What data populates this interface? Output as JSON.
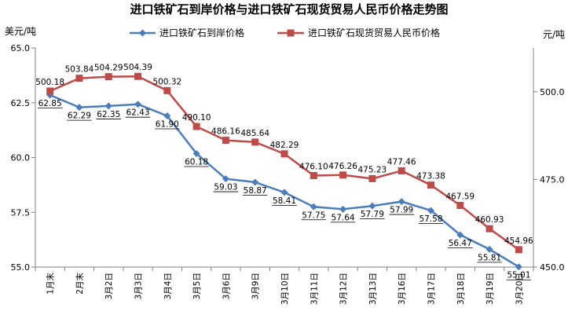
{
  "chart_data": {
    "type": "line",
    "title": "进口铁矿石到岸价格与进口铁矿石现货贸易人民币价格走势图",
    "ylabel_left": "美元/吨",
    "ylabel_right": "元/吨",
    "categories": [
      "1月末",
      "2月末",
      "3月2日",
      "3月3日",
      "3月4日",
      "3月5日",
      "3月6日",
      "3月9日",
      "3月10日",
      "3月11日",
      "3月12日",
      "3月13日",
      "3月16日",
      "3月17日",
      "3月18日",
      "3月19日",
      "3月20日"
    ],
    "ylim_left": [
      55.0,
      65.0
    ],
    "yticks_left": [
      55.0,
      57.5,
      60.0,
      62.5,
      65.0
    ],
    "ytick_labels_left": [
      "55.0",
      "57.5",
      "60.0",
      "62.5",
      "65.0"
    ],
    "ylim_right": [
      450.0,
      512.5
    ],
    "yticks_right": [
      450.0,
      475.0,
      500.0
    ],
    "ytick_labels_right": [
      "450.0",
      "475.0",
      "500.0"
    ],
    "grid": false,
    "legend_position": "top",
    "series": [
      {
        "name": "进口铁矿石到岸价格",
        "axis": "left",
        "color": "#4A7EBB",
        "marker": "diamond",
        "values": [
          62.85,
          62.29,
          62.35,
          62.43,
          61.9,
          60.18,
          59.03,
          58.87,
          58.41,
          57.75,
          57.64,
          57.79,
          57.99,
          57.58,
          56.47,
          55.81,
          55.01
        ],
        "labels": [
          "62.85",
          "62.29",
          "62.35",
          "62.43",
          "61.90",
          "60.18",
          "59.03",
          "58.87",
          "58.41",
          "57.75",
          "57.64",
          "57.79",
          "57.99",
          "57.58",
          "56.47",
          "55.81",
          "55.01"
        ]
      },
      {
        "name": "进口铁矿石现货贸易人民币价格",
        "axis": "right",
        "color": "#BE4B48",
        "marker": "square",
        "values": [
          500.18,
          503.84,
          504.29,
          504.39,
          500.32,
          490.1,
          486.16,
          485.64,
          482.29,
          476.1,
          476.26,
          475.23,
          477.46,
          473.38,
          467.59,
          460.93,
          454.96
        ],
        "labels": [
          "500.18",
          "503.84",
          "504.29",
          "504.39",
          "500.32",
          "490.10",
          "486.16",
          "485.64",
          "482.29",
          "476.10",
          "476.26",
          "475.23",
          "477.46",
          "473.38",
          "467.59",
          "460.93",
          "454.96"
        ]
      }
    ]
  }
}
